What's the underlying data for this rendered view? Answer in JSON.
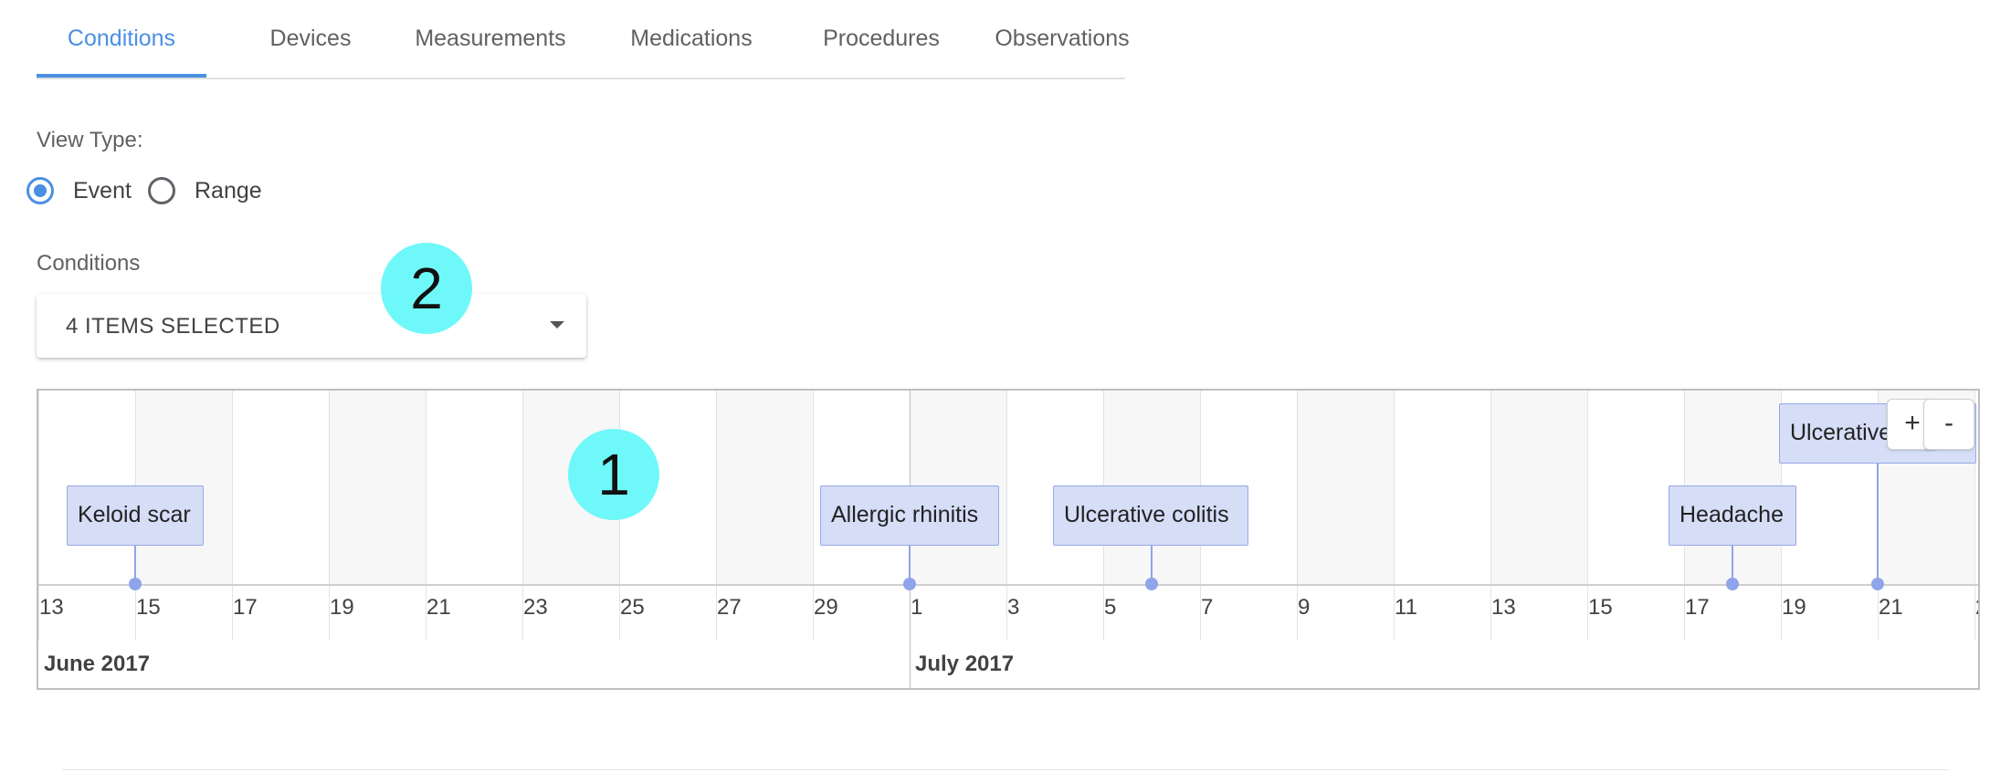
{
  "tabs": [
    {
      "label": "Conditions",
      "active": true
    },
    {
      "label": "Devices",
      "active": false
    },
    {
      "label": "Measurements",
      "active": false
    },
    {
      "label": "Medications",
      "active": false
    },
    {
      "label": "Procedures",
      "active": false
    },
    {
      "label": "Observations",
      "active": false
    }
  ],
  "view_type": {
    "label": "View Type:",
    "options": [
      {
        "label": "Event",
        "checked": true
      },
      {
        "label": "Range",
        "checked": false
      }
    ]
  },
  "conditions": {
    "label": "Conditions",
    "selected_text": "4 ITEMS SELECTED"
  },
  "markers": [
    "2",
    "1"
  ],
  "timeline": {
    "day_ticks": [
      "13",
      "15",
      "17",
      "19",
      "21",
      "23",
      "25",
      "27",
      "29",
      "1",
      "3",
      "5",
      "7",
      "9",
      "11",
      "13",
      "15",
      "17",
      "19",
      "21",
      "2"
    ],
    "months": [
      "June 2017",
      "July 2017"
    ],
    "events": [
      {
        "label": "Keloid scar",
        "date": "2017-06-15"
      },
      {
        "label": "Allergic rhinitis",
        "date": "2017-07-01"
      },
      {
        "label": "Ulcerative colitis",
        "date": "2017-07-06"
      },
      {
        "label": "Headache",
        "date": "2017-07-18"
      },
      {
        "label": "Ulcerative colitis",
        "date": "2017-07-21"
      }
    ],
    "zoom_in_label": "+",
    "zoom_out_label": "-"
  },
  "colors": {
    "accent": "#4a90e2",
    "event_fill": "#d5ddf7",
    "event_border": "#97a8e6",
    "marker": "#6ff8f9"
  }
}
